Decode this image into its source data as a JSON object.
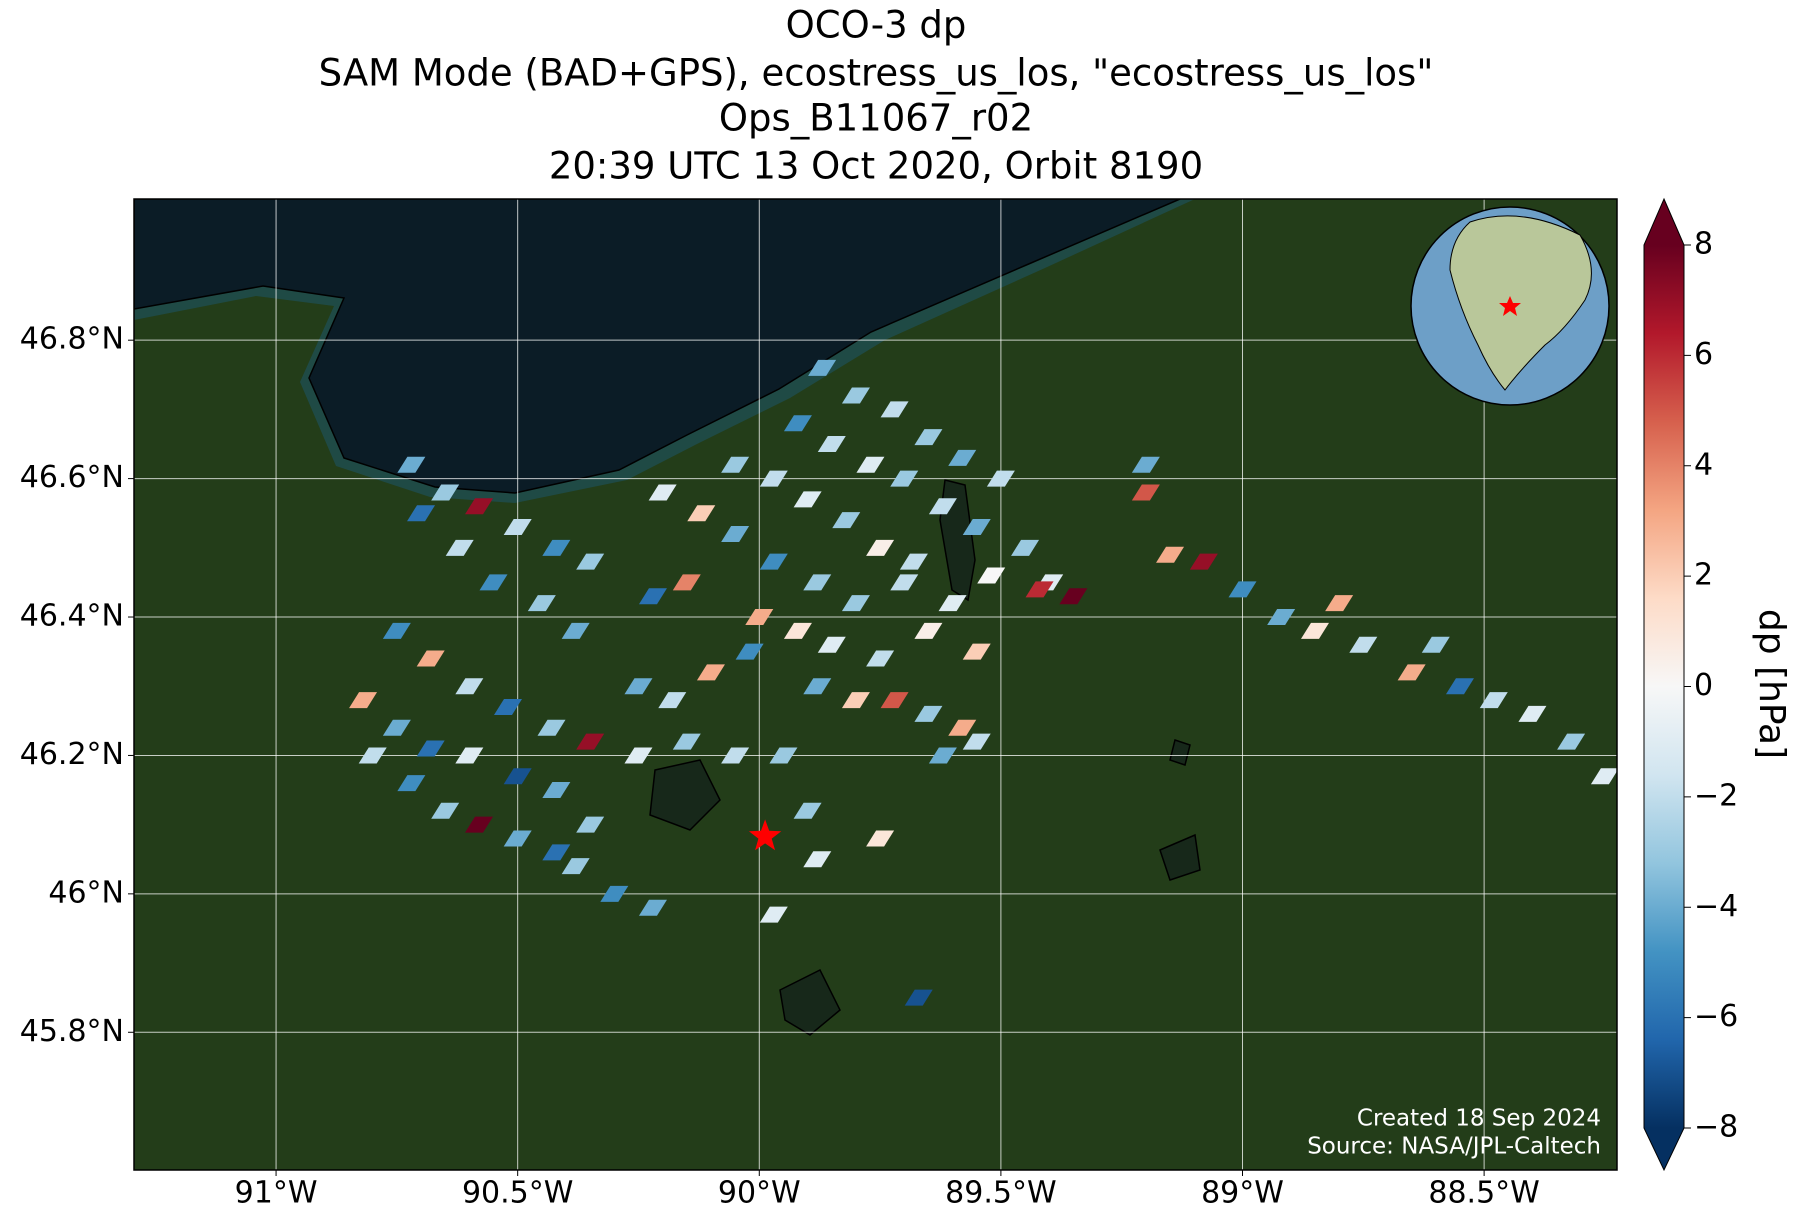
{
  "chart_data": {
    "type": "map",
    "title": [
      "OCO-3 dp",
      "SAM Mode (BAD+GPS), ecostress_us_los, \"ecostress_us_los\"",
      "Ops_B11067_r02",
      "20:39 UTC 13 Oct 2020, Orbit 8190"
    ],
    "xlim": [
      -91.294,
      -88.225
    ],
    "ylim": [
      45.601,
      47.004
    ],
    "xticks": [
      {
        "value": -91,
        "label": "91°W"
      },
      {
        "value": -90.5,
        "label": "90.5°W"
      },
      {
        "value": -90,
        "label": "90°W"
      },
      {
        "value": -89.5,
        "label": "89.5°W"
      },
      {
        "value": -89,
        "label": "89°W"
      },
      {
        "value": -88.5,
        "label": "88.5°W"
      }
    ],
    "yticks": [
      {
        "value": 45.8,
        "label": "45.8°N"
      },
      {
        "value": 46,
        "label": "46°N"
      },
      {
        "value": 46.2,
        "label": "46.2°N"
      },
      {
        "value": 46.4,
        "label": "46.4°N"
      },
      {
        "value": 46.6,
        "label": "46.6°N"
      },
      {
        "value": 46.8,
        "label": "46.8°N"
      }
    ],
    "grid": true,
    "colorbar": {
      "label": "dp [hPa]",
      "lim": [
        -8,
        8
      ],
      "ticks": [
        8,
        6,
        4,
        2,
        0,
        {
          "value": -2,
          "label": "−2"
        },
        {
          "value": -4,
          "label": "−4"
        },
        {
          "value": -6,
          "label": "−6"
        },
        {
          "value": -8,
          "label": "−8"
        }
      ],
      "colors": [
        "#053061",
        "#2166ac",
        "#4393c3",
        "#92c5de",
        "#d1e5f0",
        "#f7f7f7",
        "#fddbc7",
        "#f4a582",
        "#d6604d",
        "#b2182b",
        "#67001f"
      ]
    },
    "soundings": {
      "lon": [
        -89.87,
        -89.8,
        -89.72,
        -89.65,
        -89.58,
        -89.5,
        -89.92,
        -89.85,
        -89.77,
        -89.7,
        -89.62,
        -89.55,
        -90.05,
        -89.97,
        -89.9,
        -89.82,
        -89.75,
        -89.68,
        -90.2,
        -90.12,
        -90.05,
        -89.97,
        -89.88,
        -89.8,
        -89.7,
        -89.6,
        -89.52,
        -89.45,
        -89.4,
        -89.15,
        -89.08,
        -89.0,
        -88.92,
        -88.85,
        -88.75,
        -88.65,
        -88.55,
        -88.48,
        -88.4,
        -88.32,
        -88.25,
        -89.2,
        -89.2,
        -88.8,
        -88.6,
        -90.72,
        -90.65,
        -90.58,
        -90.5,
        -90.42,
        -90.35,
        -90.7,
        -90.62,
        -90.55,
        -90.45,
        -90.38,
        -90.75,
        -90.68,
        -90.6,
        -90.52,
        -90.43,
        -90.35,
        -90.82,
        -90.75,
        -90.68,
        -90.6,
        -90.5,
        -90.42,
        -90.8,
        -90.72,
        -90.65,
        -90.58,
        -90.5,
        -90.42,
        -90.35,
        -90.25,
        -90.18,
        -90.1,
        -90.02,
        -90.25,
        -90.15,
        -90.05,
        -90.38,
        -90.3,
        -90.22,
        -90.15,
        -90.22,
        -90.0,
        -89.92,
        -89.85,
        -89.75,
        -89.88,
        -89.8,
        -89.72,
        -89.65,
        -89.58,
        -89.55,
        -89.65,
        -89.55,
        -89.62,
        -89.95,
        -89.9,
        -89.75,
        -89.88,
        -89.97,
        -89.67,
        -89.42,
        -89.35
      ],
      "lat": [
        46.76,
        46.72,
        46.7,
        46.66,
        46.63,
        46.6,
        46.68,
        46.65,
        46.62,
        46.6,
        46.56,
        46.53,
        46.62,
        46.6,
        46.57,
        46.54,
        46.5,
        46.48,
        46.58,
        46.55,
        46.52,
        46.48,
        46.45,
        46.42,
        46.45,
        46.42,
        46.46,
        46.5,
        46.45,
        46.49,
        46.48,
        46.44,
        46.4,
        46.38,
        46.36,
        46.32,
        46.3,
        46.28,
        46.26,
        46.22,
        46.17,
        46.58,
        46.62,
        46.42,
        46.36,
        46.62,
        46.58,
        46.56,
        46.53,
        46.5,
        46.48,
        46.55,
        46.5,
        46.45,
        46.42,
        46.38,
        46.38,
        46.34,
        46.3,
        46.27,
        46.24,
        46.22,
        46.28,
        46.24,
        46.21,
        46.2,
        46.17,
        46.15,
        46.2,
        46.16,
        46.12,
        46.1,
        46.08,
        46.06,
        46.1,
        46.3,
        46.28,
        46.32,
        46.35,
        46.2,
        46.22,
        46.2,
        46.04,
        46.0,
        45.98,
        46.45,
        46.43,
        46.4,
        46.38,
        46.36,
        46.34,
        46.3,
        46.28,
        46.28,
        46.26,
        46.24,
        46.22,
        46.38,
        46.35,
        46.2,
        46.2,
        46.12,
        46.08,
        46.05,
        45.97,
        45.85,
        46.44,
        46.43
      ],
      "dp": [
        -4,
        -3,
        -2,
        -3,
        -4,
        -2,
        -5,
        -2,
        -1,
        -3,
        -2,
        -4,
        -3,
        -2,
        -1,
        -3,
        0.5,
        -2,
        -1,
        2,
        -4,
        -5,
        -3,
        -3,
        -2,
        -1,
        0,
        -3,
        -1,
        3,
        7,
        -5,
        -4,
        1,
        -2,
        3,
        -6,
        -2,
        -1,
        -3,
        -1,
        5,
        -4,
        3,
        -3,
        -4,
        -3,
        7,
        -2,
        -5,
        -3,
        -6,
        -2,
        -5,
        -3,
        -4,
        -5,
        3,
        -2,
        -6,
        -3,
        7,
        3,
        -4,
        -6,
        -1,
        -7,
        -4,
        -2,
        -5,
        -3,
        8,
        -4,
        -6,
        -3,
        -4,
        -2,
        3,
        -5,
        -1,
        -3,
        -2,
        -3,
        -5,
        -4,
        4,
        -6,
        3,
        1,
        -1,
        -2,
        -4,
        2,
        5,
        -3,
        3,
        -2,
        0.5,
        2,
        -4,
        -3,
        -3,
        1,
        -1,
        -1,
        -7,
        6,
        8
      ]
    },
    "target": {
      "lon": -89.988,
      "lat": 46.083
    },
    "credits": [
      "Created 18 Sep 2024",
      "Source: NASA/JPL-Caltech"
    ]
  }
}
